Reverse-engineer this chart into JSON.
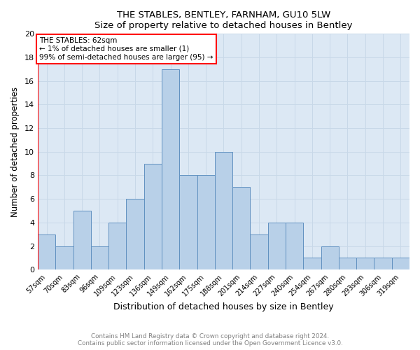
{
  "title": "THE STABLES, BENTLEY, FARNHAM, GU10 5LW",
  "subtitle": "Size of property relative to detached houses in Bentley",
  "xlabel": "Distribution of detached houses by size in Bentley",
  "ylabel": "Number of detached properties",
  "categories": [
    "57sqm",
    "70sqm",
    "83sqm",
    "96sqm",
    "109sqm",
    "123sqm",
    "136sqm",
    "149sqm",
    "162sqm",
    "175sqm",
    "188sqm",
    "201sqm",
    "214sqm",
    "227sqm",
    "240sqm",
    "254sqm",
    "267sqm",
    "280sqm",
    "293sqm",
    "306sqm",
    "319sqm"
  ],
  "values": [
    3,
    2,
    5,
    2,
    4,
    6,
    9,
    17,
    8,
    8,
    10,
    7,
    3,
    4,
    4,
    1,
    2,
    1,
    1,
    1,
    1
  ],
  "bar_color": "#b8d0e8",
  "bar_edge_color": "#6090c0",
  "annotation_text_line1": "THE STABLES: 62sqm",
  "annotation_text_line2": "← 1% of detached houses are smaller (1)",
  "annotation_text_line3": "99% of semi-detached houses are larger (95) →",
  "ylim": [
    0,
    20
  ],
  "yticks": [
    0,
    2,
    4,
    6,
    8,
    10,
    12,
    14,
    16,
    18,
    20
  ],
  "footnote1": "Contains HM Land Registry data © Crown copyright and database right 2024.",
  "footnote2": "Contains public sector information licensed under the Open Government Licence v3.0.",
  "background_color": "#ffffff",
  "grid_color": "#c8d8e8",
  "axes_bg_color": "#dce8f4"
}
